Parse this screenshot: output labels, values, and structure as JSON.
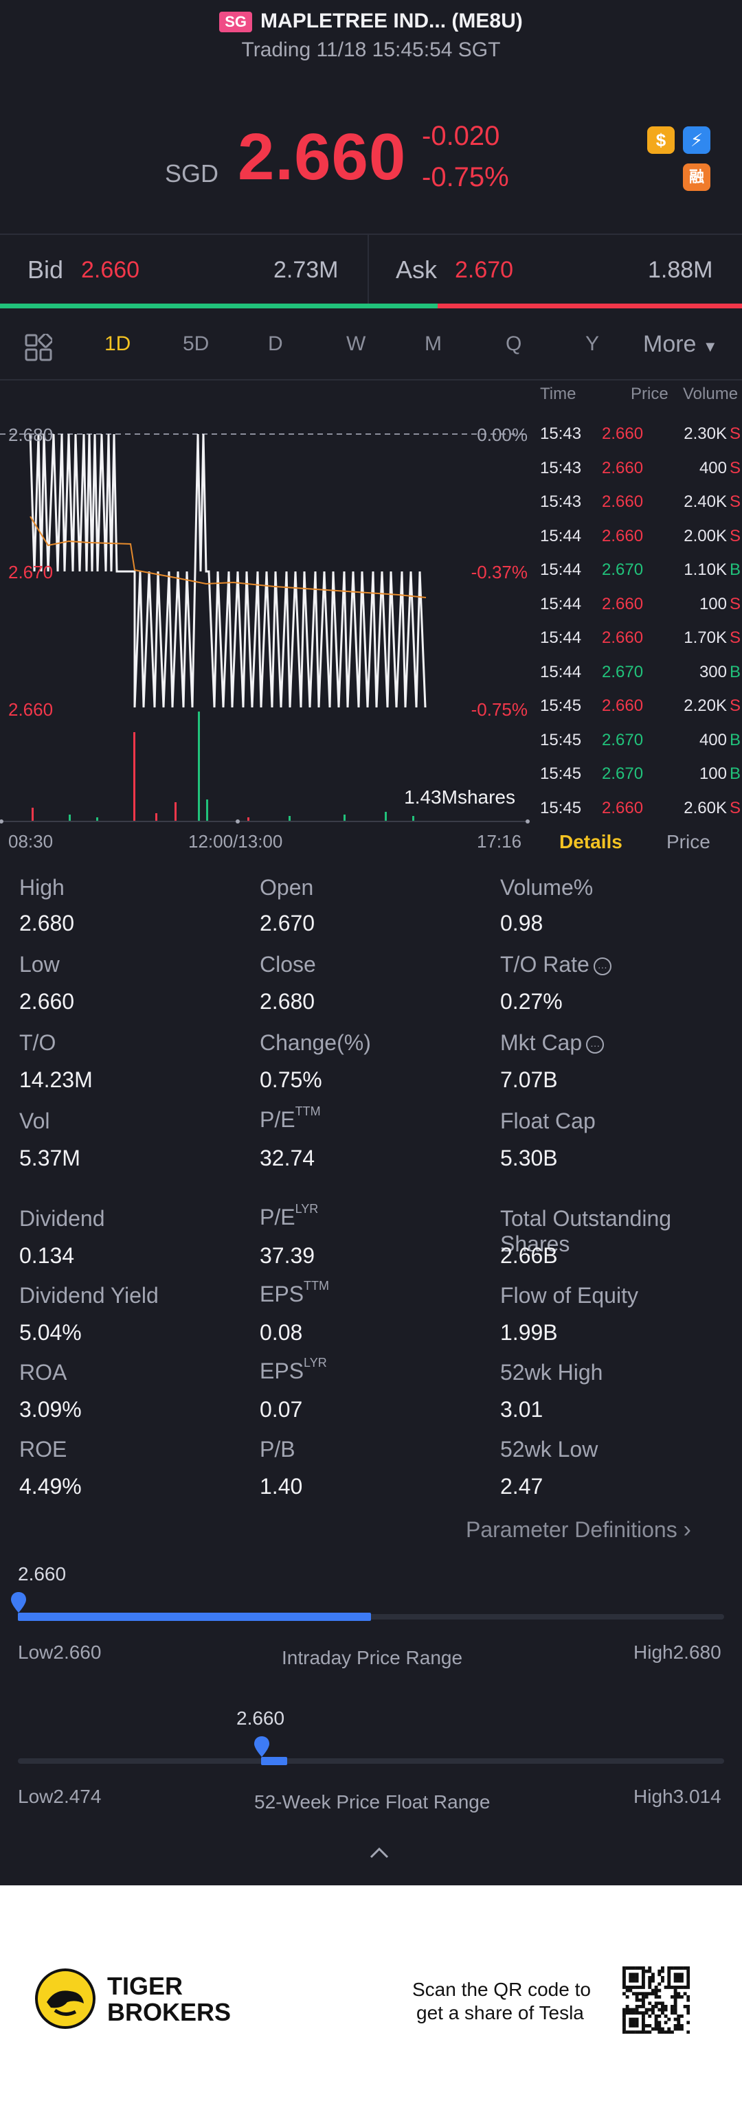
{
  "header": {
    "market_badge": "SG",
    "stock_name": "MAPLETREE IND... (ME8U)",
    "trading_status": "Trading 11/18 15:45:54 SGT",
    "currency": "SGD",
    "price": "2.660",
    "change": "-0.020",
    "change_pct": "-0.75%",
    "icons": [
      "dollar-icon",
      "lightning-icon",
      "margin-icon"
    ],
    "icon_glyphs": {
      "dollar": "$",
      "lightning": "⚡",
      "margin": "融"
    }
  },
  "bid_ask": {
    "bid_label": "Bid",
    "bid_price": "2.660",
    "bid_size": "2.73M",
    "ask_label": "Ask",
    "ask_price": "2.670",
    "ask_size": "1.88M"
  },
  "tabs": {
    "items": [
      "1D",
      "5D",
      "D",
      "W",
      "M",
      "Q",
      "Y"
    ],
    "active": "1D",
    "more": "More"
  },
  "chart": {
    "y_labels": {
      "top": "2.680",
      "mid": "2.670",
      "low": "2.660"
    },
    "pct_labels": {
      "top": "0.00%",
      "mid": "-0.37%",
      "low": "-0.75%"
    },
    "volume_label": "1.43Mshares",
    "x_labels": [
      "08:30",
      "12:00/13:00",
      "17:16"
    ]
  },
  "ticks_header": {
    "time": "Time",
    "price": "Price",
    "volume": "Volume"
  },
  "ticks": [
    {
      "time": "15:43",
      "price": "2.660",
      "volume": "2.30K",
      "side": "S"
    },
    {
      "time": "15:43",
      "price": "2.660",
      "volume": "400",
      "side": "S"
    },
    {
      "time": "15:43",
      "price": "2.660",
      "volume": "2.40K",
      "side": "S"
    },
    {
      "time": "15:44",
      "price": "2.660",
      "volume": "2.00K",
      "side": "S"
    },
    {
      "time": "15:44",
      "price": "2.670",
      "volume": "1.10K",
      "side": "B"
    },
    {
      "time": "15:44",
      "price": "2.660",
      "volume": "100",
      "side": "S"
    },
    {
      "time": "15:44",
      "price": "2.660",
      "volume": "1.70K",
      "side": "S"
    },
    {
      "time": "15:44",
      "price": "2.670",
      "volume": "300",
      "side": "B"
    },
    {
      "time": "15:45",
      "price": "2.660",
      "volume": "2.20K",
      "side": "S"
    },
    {
      "time": "15:45",
      "price": "2.670",
      "volume": "400",
      "side": "B"
    },
    {
      "time": "15:45",
      "price": "2.670",
      "volume": "100",
      "side": "B"
    },
    {
      "time": "15:45",
      "price": "2.660",
      "volume": "2.60K",
      "side": "S"
    }
  ],
  "detail_tabs": {
    "details": "Details",
    "price": "Price"
  },
  "stats": {
    "high_label": "High",
    "high": "2.680",
    "open_label": "Open",
    "open": "2.670",
    "volpct_label": "Volume%",
    "volpct": "0.98",
    "low_label": "Low",
    "low": "2.660",
    "close_label": "Close",
    "close": "2.680",
    "torate_label": "T/O Rate",
    "torate": "0.27%",
    "to_label": "T/O",
    "to": "14.23M",
    "changepct_label": "Change(%)",
    "changepct": "0.75%",
    "mktcap_label": "Mkt Cap",
    "mktcap": "7.07B",
    "vol_label": "Vol",
    "vol": "5.37M",
    "pe_label": "P/E",
    "pe_sup": "TTM",
    "pe": "32.74",
    "floatcap_label": "Float Cap",
    "floatcap": "5.30B",
    "dividend_label": "Dividend",
    "dividend": "0.134",
    "pelyr_label": "P/E",
    "pelyr_sup": "LYR",
    "pelyr": "37.39",
    "tos_label": "Total Outstanding Shares",
    "tos": "2.66B",
    "divyield_label": "Dividend Yield",
    "divyield": "5.04%",
    "eps_label": "EPS",
    "eps_sup": "TTM",
    "eps": "0.08",
    "foe_label": "Flow of Equity",
    "foe": "1.99B",
    "roa_label": "ROA",
    "roa": "3.09%",
    "epslyr_label": "EPS",
    "epslyr_sup": "LYR",
    "epslyr": "0.07",
    "wkhigh_label": "52wk High",
    "wkhigh": "3.01",
    "roe_label": "ROE",
    "roe": "4.49%",
    "pb_label": "P/B",
    "pb": "1.40",
    "wklow_label": "52wk Low",
    "wklow": "2.47"
  },
  "param_defs": "Parameter Definitions",
  "intraday_range": {
    "current": "2.660",
    "low": "Low2.660",
    "high": "High2.680",
    "title": "Intraday Price Range",
    "position": 0.0
  },
  "week52_range": {
    "current": "2.660",
    "low": "Low2.474",
    "high": "High3.014",
    "title": "52-Week Price Float Range",
    "position": 0.344
  },
  "footer": {
    "brand_line1": "TIGER",
    "brand_line2": "BROKERS",
    "qr_text1": "Scan the QR code to",
    "qr_text2": "get a share of Tesla"
  },
  "colors": {
    "up": "#21c27b",
    "down": "#f2374a",
    "accent": "#f4c322",
    "range": "#3d7bf5"
  }
}
